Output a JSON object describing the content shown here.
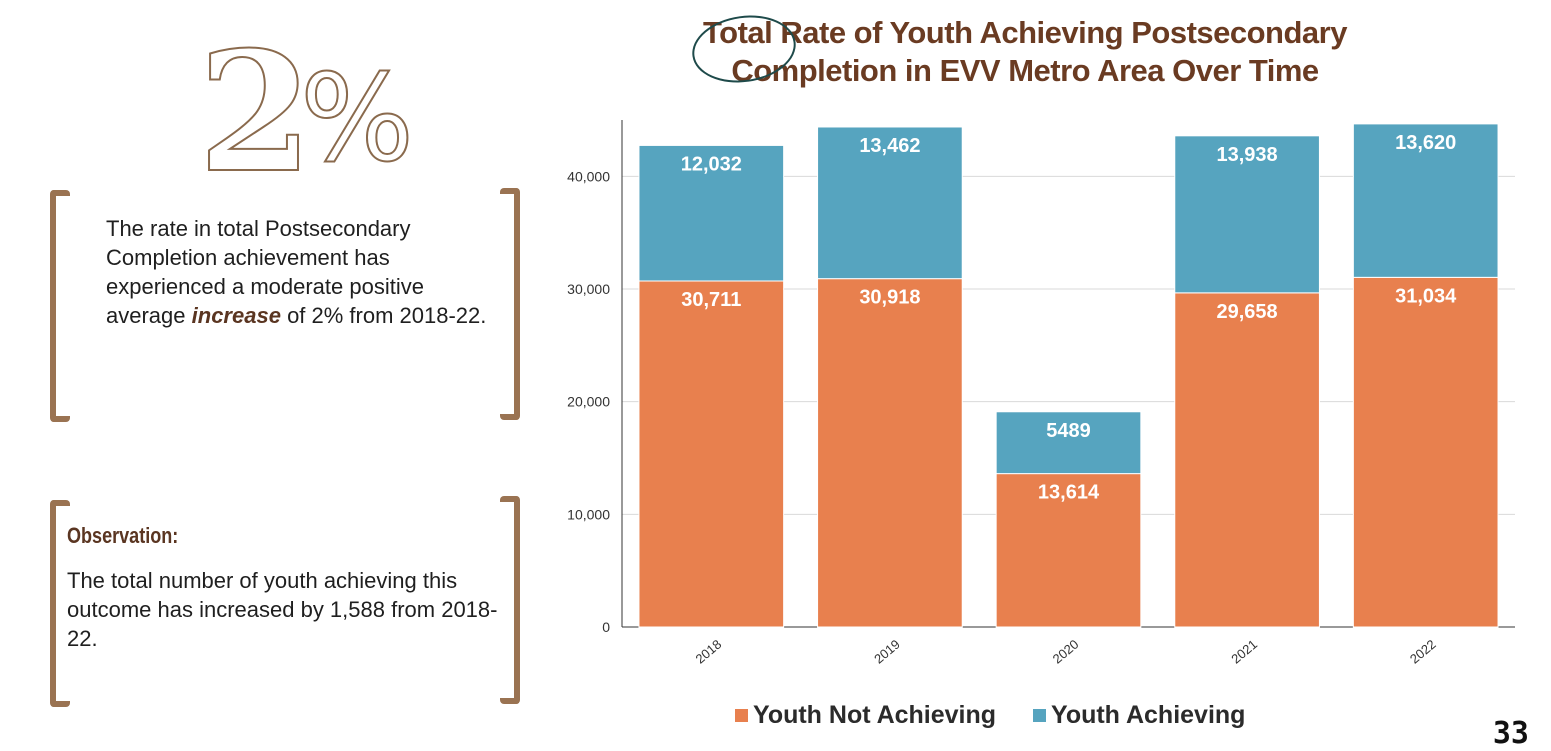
{
  "stat": {
    "digit": "2",
    "percent": "%"
  },
  "summary": {
    "before": "The rate in total Postsecondary Completion achievement has experienced a moderate positive average",
    "highlight": "increase",
    "after": "of 2% from 2018-22."
  },
  "observation": {
    "title": "Observation:",
    "text": "The total number of youth achieving this outcome has increased by 1,588 from 2018-22."
  },
  "page_number": "33",
  "colors": {
    "not_achieving": "#e8804e",
    "achieving": "#56a4bf",
    "title": "#6a3b22",
    "bracket": "#9a7352"
  },
  "chart_data": {
    "type": "bar",
    "stacked": true,
    "title_line1": "Total Rate of Youth Achieving Postsecondary",
    "title_line2": "Completion in EVV Metro Area Over Time",
    "categories": [
      "2018",
      "2019",
      "2020",
      "2021",
      "2022"
    ],
    "series": [
      {
        "name": "Youth Not Achieving",
        "values": [
          30711,
          30918,
          13614,
          29658,
          31034
        ],
        "labels": [
          "30,711",
          "30,918",
          "13,614",
          "29,658",
          "31,034"
        ]
      },
      {
        "name": "Youth Achieving",
        "values": [
          12032,
          13462,
          5489,
          13938,
          13620
        ],
        "labels": [
          "12,032",
          "13,462",
          "5489",
          "13,938",
          "13,620"
        ]
      }
    ],
    "yticks": [
      0,
      10000,
      20000,
      30000,
      40000
    ],
    "ytick_labels": [
      "0",
      "10,000",
      "20,000",
      "30,000",
      "40,000"
    ],
    "ylim": [
      0,
      45000
    ],
    "grid": true,
    "legend_position": "bottom"
  }
}
